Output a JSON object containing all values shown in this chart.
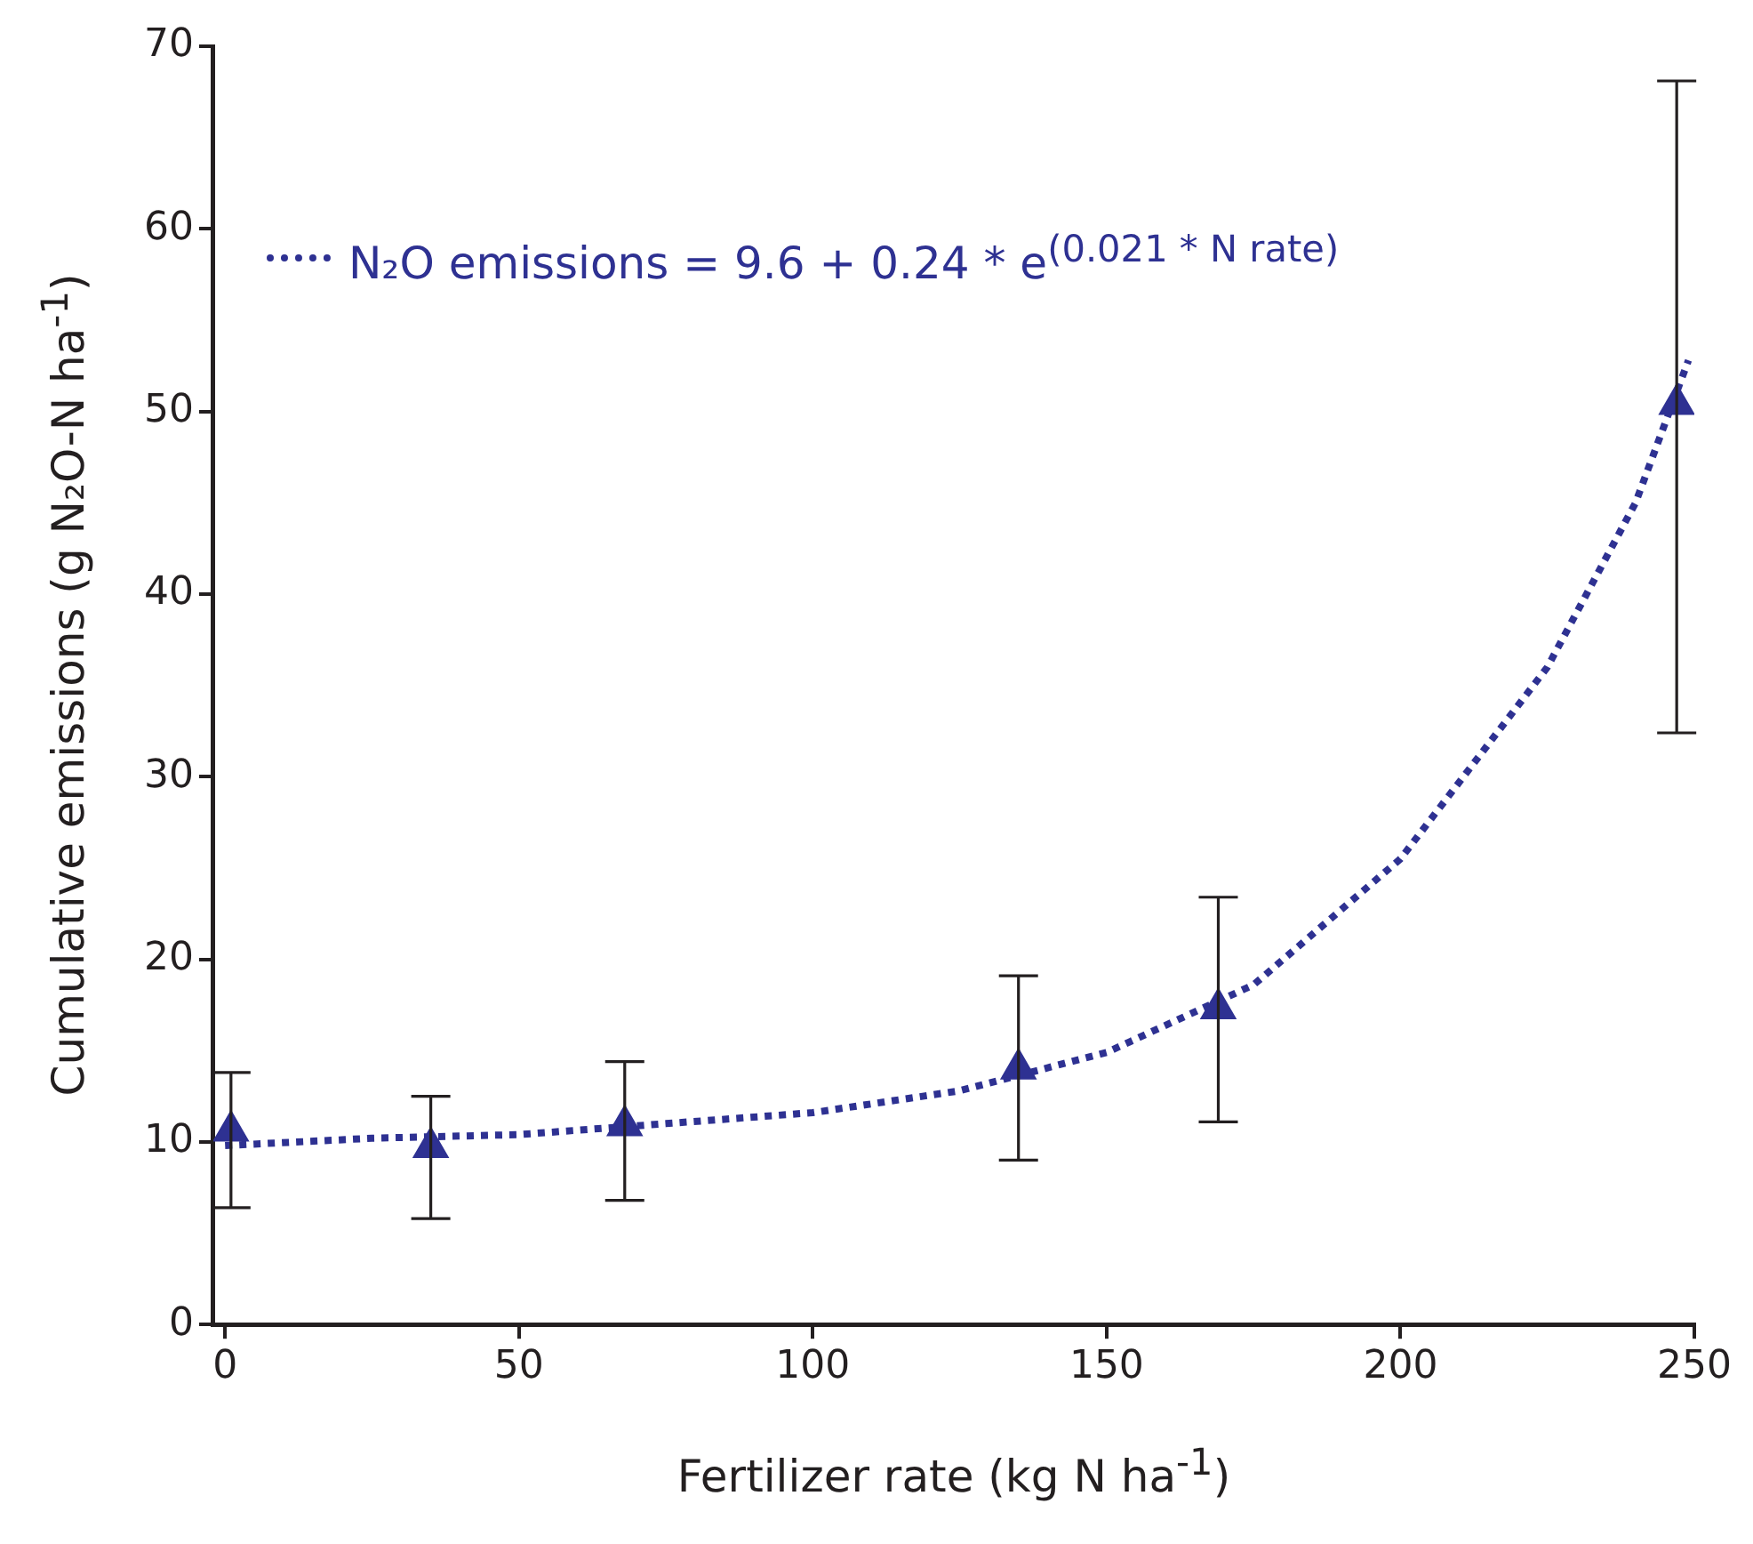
{
  "chart_data": {
    "type": "scatter",
    "xlabel": "Fertilizer rate (kg N ha$^{-1}$)",
    "ylabel": "Cumulative emissions (g N₂O-N ha$^{-1}$)",
    "xlim": [
      -2,
      250
    ],
    "xticks": [
      0,
      50,
      100,
      150,
      200,
      250
    ],
    "ylim": [
      0,
      70
    ],
    "yticks": [
      0,
      10,
      20,
      30,
      40,
      50,
      60,
      70
    ],
    "grid": false,
    "legend": "top",
    "marker": "triangle",
    "series": [
      {
        "color": "#2e3192",
        "x": [
          1,
          35,
          68,
          135,
          169,
          247
        ],
        "values": [
          10.6,
          9.7,
          10.9,
          14.0,
          17.3,
          50.4
        ],
        "errors": [
          [
            6.4,
            13.8
          ],
          [
            5.8,
            12.5
          ],
          [
            6.8,
            14.4
          ],
          [
            9.0,
            19.1
          ],
          [
            11.1,
            23.4
          ],
          [
            32.4,
            68.1
          ]
        ]
      },
      {
        "type": "line",
        "name": "N₂O emissions = 9.6 + 0.24 * e$^{(0.021 * N rate)}$",
        "color": "#2e3192",
        "line_style": "dotted",
        "marker": "none",
        "x": [
          0,
          25,
          50,
          75,
          100,
          125,
          150,
          175,
          200,
          225,
          240,
          249
        ],
        "values": [
          9.8,
          10.2,
          10.4,
          11.0,
          11.6,
          12.8,
          14.9,
          18.6,
          25.5,
          36.0,
          45.0,
          52.8
        ]
      }
    ]
  }
}
